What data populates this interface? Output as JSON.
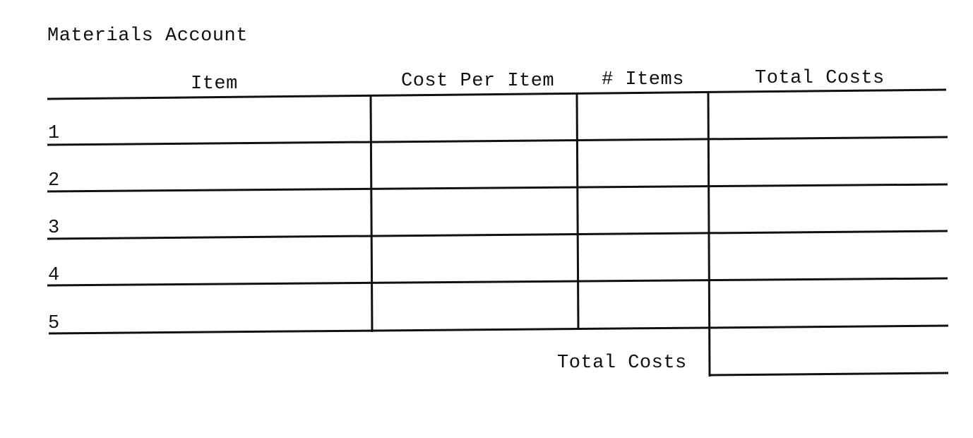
{
  "title": "Materials Account",
  "columns": [
    "Item",
    "Cost Per Item",
    "# Items",
    "Total Costs"
  ],
  "rows": [
    {
      "number": "1",
      "item": "",
      "cost_per_item": "",
      "num_items": "",
      "total_costs": ""
    },
    {
      "number": "2",
      "item": "",
      "cost_per_item": "",
      "num_items": "",
      "total_costs": ""
    },
    {
      "number": "3",
      "item": "",
      "cost_per_item": "",
      "num_items": "",
      "total_costs": ""
    },
    {
      "number": "4",
      "item": "",
      "cost_per_item": "",
      "num_items": "",
      "total_costs": ""
    },
    {
      "number": "5",
      "item": "",
      "cost_per_item": "",
      "num_items": "",
      "total_costs": ""
    }
  ],
  "footer": {
    "total_label": "Total Costs",
    "total_value": ""
  }
}
